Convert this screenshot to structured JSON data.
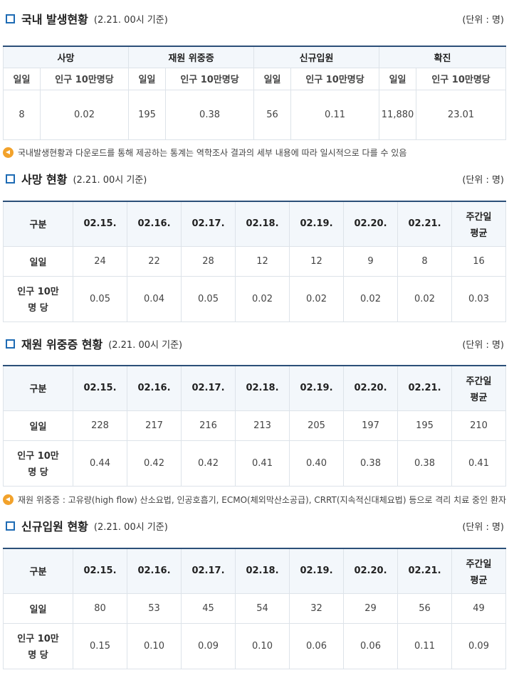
{
  "sections": [
    {
      "title": "국내 발생현황",
      "date": "(2.21. 00시 기준)",
      "unit": "(단위 : 명)"
    },
    {
      "title": "사망 현황",
      "date": "(2.21. 00시 기준)",
      "unit": "(단위 : 명)"
    },
    {
      "title": "재원 위중증 현황",
      "date": "(2.21. 00시 기준)",
      "unit": "(단위 : 명)"
    },
    {
      "title": "신규입원 현황",
      "date": "(2.21. 00시 기준)",
      "unit": "(단위 : 명)"
    }
  ],
  "summary": {
    "groups": [
      "사망",
      "재원 위중증",
      "신규입원",
      "확진"
    ],
    "sub_daily": "일일",
    "sub_per": "인구 10만명당",
    "values": [
      {
        "daily": "8",
        "per": "0.02"
      },
      {
        "daily": "195",
        "per": "0.38"
      },
      {
        "daily": "56",
        "per": "0.11"
      },
      {
        "daily": "11,880",
        "per": "23.01"
      }
    ]
  },
  "notes": [
    "국내발생현황과 다운로드를 통해 제공하는 통계는 역학조사 결과의 세부 내용에 따라 일시적으로 다를 수 있음",
    "재원 위중증 : 고유량(high flow) 산소요법, 인공호흡기, ECMO(체외막산소공급), CRRT(지속적신대체요법) 등으로 격리 치료 중인 환자"
  ],
  "daily_tables": {
    "header_label": "구분",
    "dates": [
      "02.15.",
      "02.16.",
      "02.17.",
      "02.18.",
      "02.19.",
      "02.20.",
      "02.21."
    ],
    "avg_line1": "주간일",
    "avg_line2": "평균",
    "row_daily": "일일",
    "row_per_line1": "인구 10만",
    "row_per_line2": "명 당",
    "tables": [
      {
        "daily": [
          "24",
          "22",
          "28",
          "12",
          "12",
          "9",
          "8",
          "16"
        ],
        "per": [
          "0.05",
          "0.04",
          "0.05",
          "0.02",
          "0.02",
          "0.02",
          "0.02",
          "0.03"
        ]
      },
      {
        "daily": [
          "228",
          "217",
          "216",
          "213",
          "205",
          "197",
          "195",
          "210"
        ],
        "per": [
          "0.44",
          "0.42",
          "0.42",
          "0.41",
          "0.40",
          "0.38",
          "0.38",
          "0.41"
        ]
      },
      {
        "daily": [
          "80",
          "53",
          "45",
          "54",
          "32",
          "29",
          "56",
          "49"
        ],
        "per": [
          "0.15",
          "0.10",
          "0.09",
          "0.10",
          "0.06",
          "0.06",
          "0.11",
          "0.09"
        ]
      }
    ]
  },
  "colors": {
    "accent": "#1e6bb4",
    "table_border_top": "#2b4f78",
    "header_bg": "#f3f7fb",
    "note_icon": "#f2a22b"
  }
}
